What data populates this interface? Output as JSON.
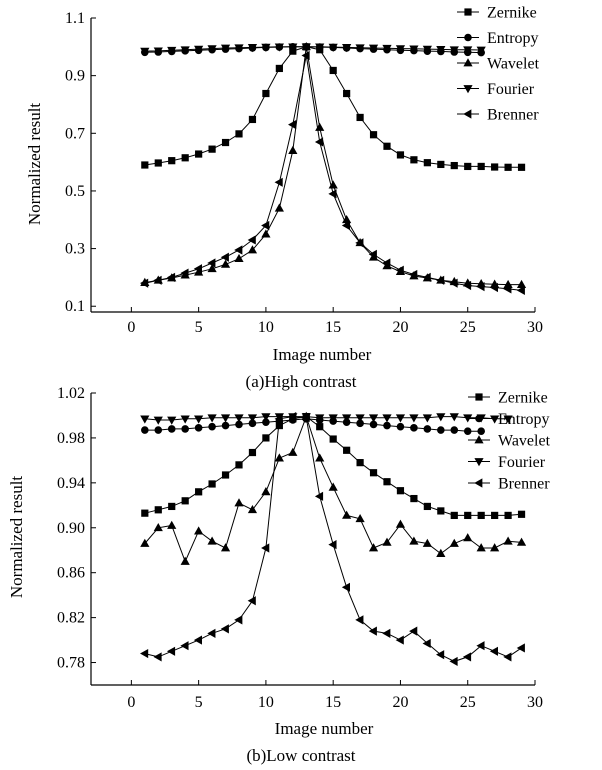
{
  "chart_data": [
    {
      "type": "line",
      "caption": "(a)High contrast",
      "xlabel": "Image number",
      "ylabel": "Normalized result",
      "xlim": [
        -3,
        30
      ],
      "ylim": [
        0.08,
        1.1
      ],
      "xticks": [
        0,
        5,
        10,
        15,
        20,
        25,
        30
      ],
      "yticks": [
        0.1,
        0.3,
        0.5,
        0.7,
        0.9,
        1.1
      ],
      "legend_position": "top-right",
      "grid": false,
      "x": [
        1,
        2,
        3,
        4,
        5,
        6,
        7,
        8,
        9,
        10,
        11,
        12,
        13,
        14,
        15,
        16,
        17,
        18,
        19,
        20,
        21,
        22,
        23,
        24,
        25,
        26,
        27,
        28,
        29
      ],
      "series": [
        {
          "name": "Zernike",
          "marker": "square",
          "values": [
            0.59,
            0.597,
            0.605,
            0.615,
            0.628,
            0.645,
            0.668,
            0.698,
            0.748,
            0.838,
            0.925,
            0.985,
            1.0,
            0.99,
            0.918,
            0.838,
            0.755,
            0.695,
            0.655,
            0.625,
            0.608,
            0.598,
            0.592,
            0.588,
            0.585,
            0.585,
            0.583,
            0.582,
            0.582
          ]
        },
        {
          "name": "Entropy",
          "marker": "circle",
          "values": [
            0.981,
            0.982,
            0.984,
            0.986,
            0.988,
            0.99,
            0.992,
            0.994,
            0.996,
            0.998,
            0.999,
            1.0,
            1.0,
            0.999,
            0.998,
            0.996,
            0.994,
            0.992,
            0.99,
            0.988,
            0.987,
            0.985,
            0.984,
            0.982,
            0.981,
            0.98,
            null,
            null,
            null
          ]
        },
        {
          "name": "Wavelet",
          "marker": "triangle-up",
          "values": [
            0.182,
            0.19,
            0.198,
            0.208,
            0.218,
            0.23,
            0.245,
            0.265,
            0.295,
            0.35,
            0.44,
            0.64,
            1.0,
            0.72,
            0.52,
            0.4,
            0.32,
            0.27,
            0.24,
            0.22,
            0.205,
            0.198,
            0.19,
            0.185,
            0.18,
            0.178,
            0.176,
            0.175,
            0.175
          ]
        },
        {
          "name": "Fourier",
          "marker": "triangle-down",
          "values": [
            0.985,
            0.986,
            0.988,
            0.99,
            0.992,
            0.994,
            0.996,
            0.997,
            0.998,
            0.999,
            1.0,
            1.0,
            1.0,
            1.0,
            0.999,
            0.998,
            0.997,
            0.996,
            0.995,
            0.994,
            0.993,
            0.992,
            0.991,
            0.99,
            0.99,
            0.989,
            null,
            null,
            null
          ]
        },
        {
          "name": "Brenner",
          "marker": "triangle-left",
          "values": [
            0.18,
            0.19,
            0.2,
            0.215,
            0.23,
            0.25,
            0.27,
            0.295,
            0.33,
            0.38,
            0.53,
            0.73,
            0.97,
            0.67,
            0.49,
            0.38,
            0.32,
            0.28,
            0.25,
            0.225,
            0.21,
            0.2,
            0.19,
            0.18,
            0.172,
            0.168,
            0.165,
            0.16,
            0.155
          ]
        }
      ]
    },
    {
      "type": "line",
      "caption": "(b)Low contrast",
      "xlabel": "Image number",
      "ylabel": "Normalized result",
      "xlim": [
        -3,
        30
      ],
      "ylim": [
        0.76,
        1.02
      ],
      "xticks": [
        0,
        5,
        10,
        15,
        20,
        25,
        30
      ],
      "yticks": [
        0.78,
        0.82,
        0.86,
        0.9,
        0.94,
        0.98,
        1.02
      ],
      "legend_position": "top-right",
      "grid": false,
      "x": [
        1,
        2,
        3,
        4,
        5,
        6,
        7,
        8,
        9,
        10,
        11,
        12,
        13,
        14,
        15,
        16,
        17,
        18,
        19,
        20,
        21,
        22,
        23,
        24,
        25,
        26,
        27,
        28,
        29
      ],
      "series": [
        {
          "name": "Zernike",
          "marker": "square",
          "values": [
            0.913,
            0.916,
            0.919,
            0.924,
            0.932,
            0.939,
            0.947,
            0.956,
            0.967,
            0.98,
            0.991,
            0.997,
            0.999,
            0.99,
            0.979,
            0.969,
            0.958,
            0.949,
            0.941,
            0.933,
            0.926,
            0.919,
            0.915,
            0.911,
            0.911,
            0.911,
            0.911,
            0.911,
            0.912
          ]
        },
        {
          "name": "Entropy",
          "marker": "circle",
          "values": [
            0.987,
            0.987,
            0.988,
            0.988,
            0.989,
            0.99,
            0.991,
            0.992,
            0.993,
            0.994,
            0.995,
            0.996,
            0.997,
            0.996,
            0.995,
            0.994,
            0.993,
            0.992,
            0.991,
            0.99,
            0.989,
            0.988,
            0.987,
            0.987,
            0.986,
            0.986,
            null,
            null,
            null
          ]
        },
        {
          "name": "Wavelet",
          "marker": "triangle-up",
          "values": [
            0.886,
            0.9,
            0.902,
            0.87,
            0.897,
            0.888,
            0.882,
            0.922,
            0.916,
            0.932,
            0.962,
            0.967,
            0.999,
            0.962,
            0.936,
            0.911,
            0.908,
            0.882,
            0.887,
            0.903,
            0.888,
            0.886,
            0.877,
            0.886,
            0.891,
            0.882,
            0.882,
            0.888,
            0.887
          ]
        },
        {
          "name": "Fourier",
          "marker": "triangle-down",
          "values": [
            0.997,
            0.996,
            0.996,
            0.997,
            0.997,
            0.998,
            0.998,
            0.998,
            0.998,
            0.999,
            0.999,
            0.999,
            0.999,
            0.998,
            0.998,
            0.998,
            0.998,
            0.998,
            0.998,
            0.998,
            0.998,
            0.998,
            0.999,
            0.999,
            0.998,
            0.998,
            0.997,
            0.997,
            null
          ]
        },
        {
          "name": "Brenner",
          "marker": "triangle-left",
          "values": [
            0.788,
            0.785,
            0.79,
            0.795,
            0.8,
            0.806,
            0.81,
            0.818,
            0.835,
            0.882,
            0.997,
            0.999,
            0.998,
            0.928,
            0.885,
            0.847,
            0.818,
            0.808,
            0.806,
            0.8,
            0.808,
            0.797,
            0.787,
            0.781,
            0.785,
            0.795,
            0.79,
            0.785,
            0.793
          ]
        }
      ]
    }
  ]
}
